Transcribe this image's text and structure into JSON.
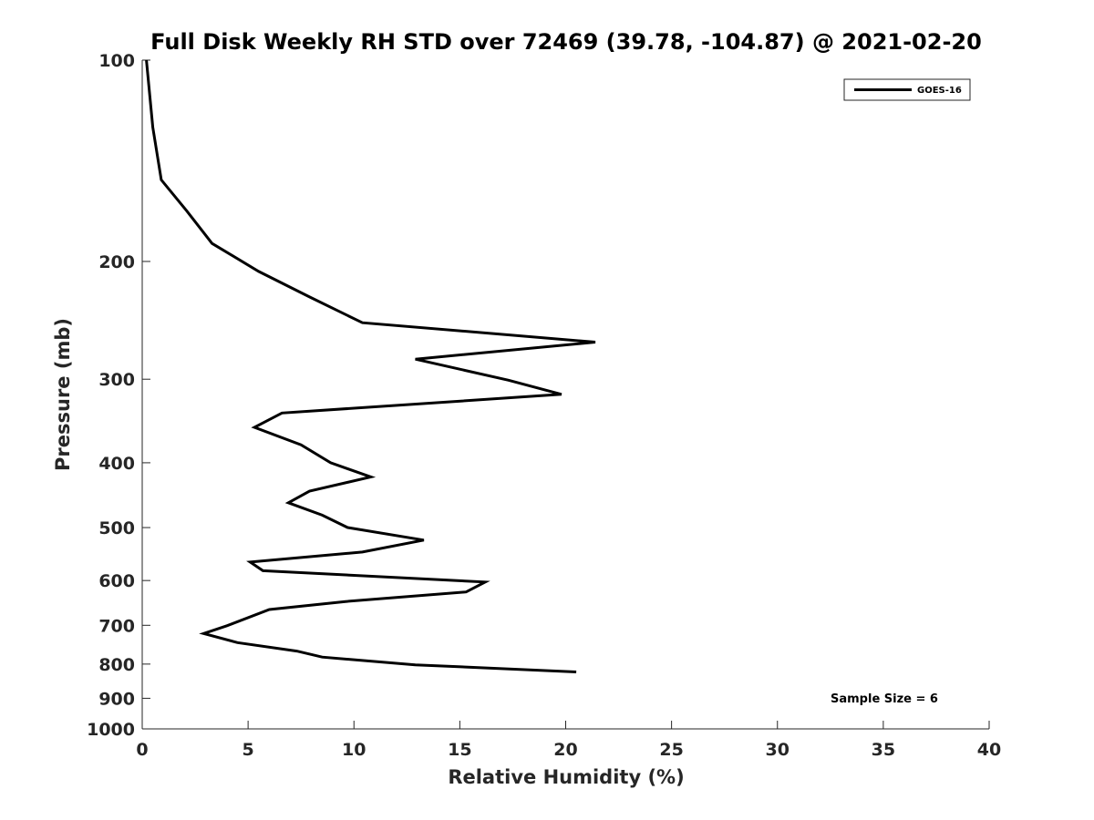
{
  "chart_data": {
    "type": "line",
    "title": "Full Disk Weekly RH STD over 72469 (39.78, -104.87) @ 2021-02-20",
    "xlabel": "Relative Humidity (%)",
    "ylabel": "Pressure (mb)",
    "xlim": [
      0,
      40
    ],
    "ylim": [
      100,
      1000
    ],
    "y_scale": "log",
    "y_reversed": true,
    "x_ticks": [
      0,
      5,
      10,
      15,
      20,
      25,
      30,
      35,
      40
    ],
    "y_ticks": [
      100,
      200,
      300,
      400,
      500,
      600,
      700,
      800,
      900,
      1000
    ],
    "grid": false,
    "legend_position": "top-right",
    "annotation": "Sample Size = 6",
    "series": [
      {
        "name": "GOES-16",
        "color": "#000000",
        "points": [
          {
            "x": 0.2,
            "y": 100
          },
          {
            "x": 0.5,
            "y": 126
          },
          {
            "x": 0.9,
            "y": 151
          },
          {
            "x": 2.1,
            "y": 168
          },
          {
            "x": 3.3,
            "y": 188
          },
          {
            "x": 5.5,
            "y": 207
          },
          {
            "x": 7.9,
            "y": 226
          },
          {
            "x": 10.4,
            "y": 247
          },
          {
            "x": 21.4,
            "y": 264
          },
          {
            "x": 12.9,
            "y": 280
          },
          {
            "x": 17.3,
            "y": 301
          },
          {
            "x": 19.8,
            "y": 316
          },
          {
            "x": 6.6,
            "y": 337
          },
          {
            "x": 5.3,
            "y": 354
          },
          {
            "x": 7.5,
            "y": 376
          },
          {
            "x": 8.9,
            "y": 400
          },
          {
            "x": 10.8,
            "y": 420
          },
          {
            "x": 7.9,
            "y": 441
          },
          {
            "x": 6.9,
            "y": 459
          },
          {
            "x": 8.5,
            "y": 479
          },
          {
            "x": 9.7,
            "y": 500
          },
          {
            "x": 13.3,
            "y": 522
          },
          {
            "x": 10.4,
            "y": 544
          },
          {
            "x": 5.1,
            "y": 563
          },
          {
            "x": 5.7,
            "y": 580
          },
          {
            "x": 16.2,
            "y": 603
          },
          {
            "x": 15.3,
            "y": 624
          },
          {
            "x": 9.6,
            "y": 645
          },
          {
            "x": 6.0,
            "y": 663
          },
          {
            "x": 4.0,
            "y": 701
          },
          {
            "x": 2.9,
            "y": 720
          },
          {
            "x": 4.5,
            "y": 743
          },
          {
            "x": 7.3,
            "y": 765
          },
          {
            "x": 8.5,
            "y": 781
          },
          {
            "x": 12.9,
            "y": 802
          },
          {
            "x": 20.5,
            "y": 822
          }
        ]
      }
    ]
  }
}
